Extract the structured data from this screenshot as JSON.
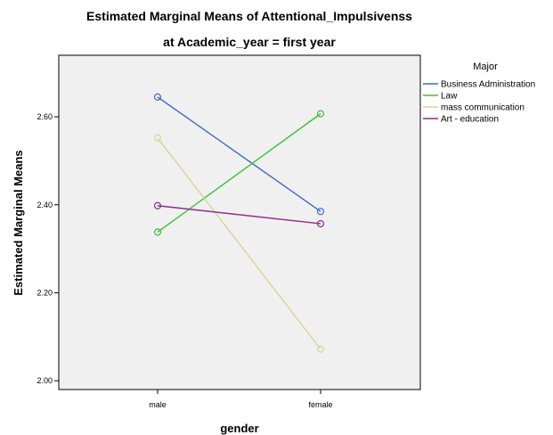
{
  "chart_data": {
    "type": "line",
    "title": "Estimated Marginal Means of Attentional_Impulsivenss",
    "subtitle": "at Academic_year = first year",
    "xlabel": "gender",
    "ylabel": "Estimated Marginal Means",
    "categories": [
      "male",
      "female"
    ],
    "ylim": [
      1.98,
      2.74
    ],
    "yticks": [
      2.0,
      2.2,
      2.4,
      2.6
    ],
    "ytick_labels": [
      "2.00",
      "2.20",
      "2.40",
      "2.60"
    ],
    "grid": false,
    "legend_title": "Major",
    "legend_position": "right",
    "series": [
      {
        "name": "Business Administration",
        "color": "#4169c8",
        "values": [
          2.645,
          2.385
        ]
      },
      {
        "name": "Law",
        "color": "#3ec13e",
        "values": [
          2.338,
          2.607
        ]
      },
      {
        "name": "mass communication",
        "color": "#d6d49b",
        "values": [
          2.552,
          2.072
        ]
      },
      {
        "name": "Art - education",
        "color": "#8e2d8f",
        "values": [
          2.398,
          2.357
        ]
      }
    ]
  }
}
